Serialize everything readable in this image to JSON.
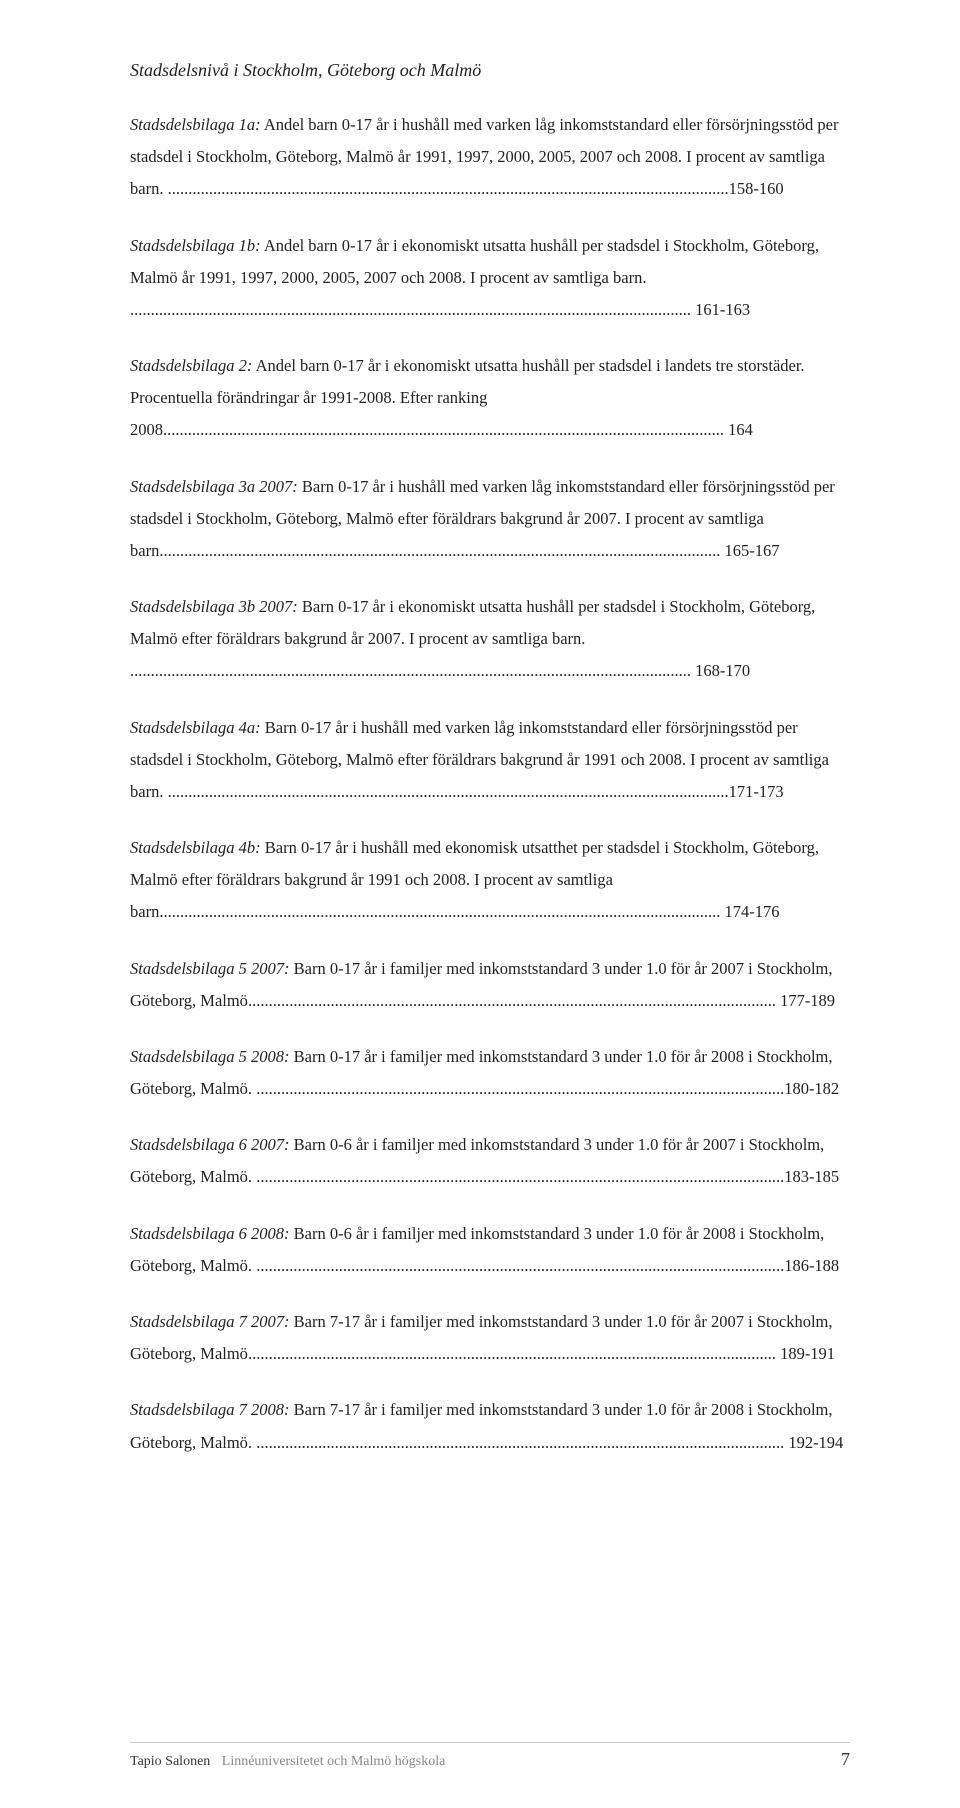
{
  "section_title": "Stadsdelsnivå i Stockholm, Göteborg och Malmö",
  "entries": [
    {
      "lead": "Stadsdelsbilaga 1a:",
      "body": " Andel barn 0-17 år i hushåll med varken låg inkomststandard eller försörjningsstöd per stadsdel i Stockholm, Göteborg, Malmö år 1991, 1997, 2000, 2005, 2007 och 2008. I procent av samtliga barn. ",
      "page": "158-160"
    },
    {
      "lead": "Stadsdelsbilaga 1b:",
      "body": " Andel barn 0-17 år i ekonomiskt utsatta hushåll per stadsdel i Stockholm, Göteborg, Malmö år 1991, 1997, 2000, 2005, 2007 och 2008. I procent av samtliga barn. ",
      "page": " 161-163"
    },
    {
      "lead": "Stadsdelsbilaga 2:",
      "body": " Andel barn 0-17 år i ekonomiskt utsatta hushåll per stadsdel i landets tre storstäder. Procentuella förändringar år 1991-2008. Efter ranking 2008",
      "page": " 164"
    },
    {
      "lead": "Stadsdelsbilaga 3a 2007:",
      "body": " Barn 0-17 år i hushåll med varken låg inkomststandard eller försörjningsstöd per stadsdel i Stockholm, Göteborg, Malmö efter föräldrars bakgrund år 2007. I procent av samtliga barn",
      "page": " 165-167"
    },
    {
      "lead": "Stadsdelsbilaga 3b 2007:",
      "body": " Barn 0-17 år i ekonomiskt utsatta hushåll per stadsdel i Stockholm, Göteborg, Malmö efter föräldrars bakgrund år 2007. I procent av samtliga barn. ",
      "page": " 168-170"
    },
    {
      "lead": "Stadsdelsbilaga 4a:",
      "body": " Barn 0-17 år i hushåll med varken låg inkomststandard eller försörjningsstöd per stadsdel i Stockholm, Göteborg, Malmö efter föräldrars bakgrund år 1991 och 2008. I procent av samtliga barn. ",
      "page": "171-173"
    },
    {
      "lead": "Stadsdelsbilaga 4b:",
      "body": " Barn 0-17 år i hushåll med ekonomisk utsatthet per stadsdel i Stockholm, Göteborg, Malmö efter föräldrars bakgrund år 1991 och 2008. I procent av samtliga barn",
      "page": " 174-176"
    },
    {
      "lead": "Stadsdelsbilaga 5 2007:",
      "body": " Barn 0-17 år i familjer med inkomststandard 3 under 1.0 för år 2007 i Stockholm, Göteborg, Malmö",
      "page": " 177-189"
    },
    {
      "lead": "Stadsdelsbilaga 5 2008:",
      "body": " Barn 0-17 år i familjer med inkomststandard 3 under 1.0 för år 2008 i Stockholm, Göteborg, Malmö. ",
      "page": "180-182"
    },
    {
      "lead": "Stadsdelsbilaga 6 2007:",
      "body": " Barn 0-6 år i familjer med inkomststandard 3 under 1.0 för år 2007 i Stockholm, Göteborg, Malmö. ",
      "page": "183-185"
    },
    {
      "lead": "Stadsdelsbilaga 6 2008:",
      "body": " Barn 0-6 år i familjer med inkomststandard 3 under 1.0 för år 2008 i Stockholm, Göteborg, Malmö. ",
      "page": "186-188"
    },
    {
      "lead": "Stadsdelsbilaga 7 2007:",
      "body": " Barn 7-17 år i familjer med inkomststandard 3 under 1.0 för år 2007 i Stockholm, Göteborg, Malmö",
      "page": " 189-191"
    },
    {
      "lead": "Stadsdelsbilaga 7 2008:",
      "body": " Barn 7-17 år i familjer med inkomststandard 3 under 1.0 för år 2008 i Stockholm, Göteborg, Malmö. ",
      "page": " 192-194"
    }
  ],
  "footer": {
    "author": "Tapio Salonen",
    "institution": "Linnéuniversitetet och Malmö högskola",
    "page_number": "7"
  },
  "dots": "........................................................................................................................................"
}
